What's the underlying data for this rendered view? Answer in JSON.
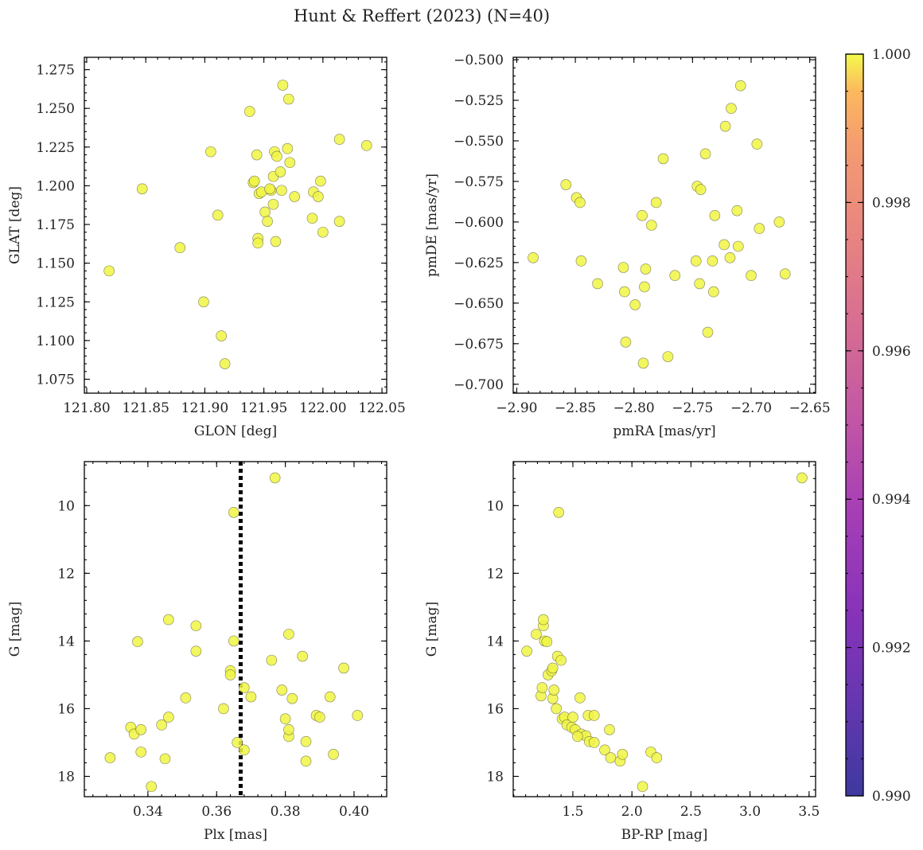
{
  "figure": {
    "title": "Hunt & Reffert (2023) (N=40)"
  },
  "point_color": "#f0f544",
  "chart_data": [
    {
      "id": "glon-glat",
      "type": "scatter",
      "xlabel": "GLON [deg]",
      "ylabel": "GLAT [deg]",
      "xlim": [
        121.798,
        122.054
      ],
      "ylim": [
        1.066,
        1.283
      ],
      "yinvert": false,
      "xticks": [
        121.8,
        121.85,
        121.9,
        121.95,
        122.0,
        122.05
      ],
      "xtick_labels": [
        "121.80",
        "121.85",
        "121.90",
        "121.95",
        "122.00",
        "122.05"
      ],
      "yticks": [
        1.075,
        1.1,
        1.125,
        1.15,
        1.175,
        1.2,
        1.225,
        1.25,
        1.275
      ],
      "ytick_labels": [
        "1.075",
        "1.100",
        "1.125",
        "1.150",
        "1.175",
        "1.200",
        "1.225",
        "1.250",
        "1.275"
      ],
      "points": [
        [
          121.819,
          1.145
        ],
        [
          121.847,
          1.198
        ],
        [
          121.879,
          1.16
        ],
        [
          121.899,
          1.125
        ],
        [
          121.905,
          1.222
        ],
        [
          121.911,
          1.181
        ],
        [
          121.914,
          1.103
        ],
        [
          121.917,
          1.085
        ],
        [
          121.938,
          1.248
        ],
        [
          121.941,
          1.202
        ],
        [
          121.942,
          1.203
        ],
        [
          121.944,
          1.22
        ],
        [
          121.945,
          1.166
        ],
        [
          121.945,
          1.163
        ],
        [
          121.946,
          1.195
        ],
        [
          121.948,
          1.196
        ],
        [
          121.951,
          1.183
        ],
        [
          121.953,
          1.177
        ],
        [
          121.956,
          1.197
        ],
        [
          121.958,
          1.188
        ],
        [
          121.958,
          1.206
        ],
        [
          121.959,
          1.222
        ],
        [
          121.96,
          1.164
        ],
        [
          121.961,
          1.219
        ],
        [
          121.964,
          1.209
        ],
        [
          121.965,
          1.197
        ],
        [
          121.966,
          1.265
        ],
        [
          121.97,
          1.224
        ],
        [
          121.971,
          1.256
        ],
        [
          121.972,
          1.215
        ],
        [
          121.976,
          1.193
        ],
        [
          121.991,
          1.179
        ],
        [
          121.992,
          1.196
        ],
        [
          121.996,
          1.193
        ],
        [
          121.998,
          1.203
        ],
        [
          122.0,
          1.17
        ],
        [
          122.014,
          1.23
        ],
        [
          122.014,
          1.177
        ],
        [
          122.037,
          1.226
        ],
        [
          121.955,
          1.198
        ]
      ]
    },
    {
      "id": "pm",
      "type": "scatter",
      "xlabel": "pmRA [mas/yr]",
      "ylabel": "pmDE [mas/yr]",
      "xlim": [
        -2.903,
        -2.645
      ],
      "ylim": [
        -0.7055,
        -0.4985
      ],
      "yinvert": false,
      "xticks": [
        -2.9,
        -2.85,
        -2.8,
        -2.75,
        -2.7,
        -2.65
      ],
      "xtick_labels": [
        "−2.90",
        "−2.85",
        "−2.80",
        "−2.75",
        "−2.70",
        "−2.65"
      ],
      "yticks": [
        -0.7,
        -0.675,
        -0.65,
        -0.625,
        -0.6,
        -0.575,
        -0.55,
        -0.525,
        -0.5
      ],
      "ytick_labels": [
        "−0.700",
        "−0.675",
        "−0.650",
        "−0.625",
        "−0.600",
        "−0.575",
        "−0.550",
        "−0.525",
        "−0.500"
      ],
      "points": [
        [
          -2.886,
          -0.622
        ],
        [
          -2.858,
          -0.577
        ],
        [
          -2.849,
          -0.585
        ],
        [
          -2.846,
          -0.588
        ],
        [
          -2.845,
          -0.624
        ],
        [
          -2.831,
          -0.638
        ],
        [
          -2.809,
          -0.628
        ],
        [
          -2.808,
          -0.643
        ],
        [
          -2.807,
          -0.674
        ],
        [
          -2.793,
          -0.596
        ],
        [
          -2.792,
          -0.687
        ],
        [
          -2.791,
          -0.64
        ],
        [
          -2.79,
          -0.629
        ],
        [
          -2.785,
          -0.602
        ],
        [
          -2.781,
          -0.588
        ],
        [
          -2.799,
          -0.651
        ],
        [
          -2.775,
          -0.561
        ],
        [
          -2.771,
          -0.683
        ],
        [
          -2.765,
          -0.633
        ],
        [
          -2.747,
          -0.624
        ],
        [
          -2.746,
          -0.578
        ],
        [
          -2.744,
          -0.638
        ],
        [
          -2.743,
          -0.58
        ],
        [
          -2.739,
          -0.558
        ],
        [
          -2.737,
          -0.668
        ],
        [
          -2.733,
          -0.624
        ],
        [
          -2.732,
          -0.643
        ],
        [
          -2.731,
          -0.596
        ],
        [
          -2.723,
          -0.614
        ],
        [
          -2.722,
          -0.541
        ],
        [
          -2.718,
          -0.622
        ],
        [
          -2.717,
          -0.53
        ],
        [
          -2.712,
          -0.593
        ],
        [
          -2.711,
          -0.615
        ],
        [
          -2.709,
          -0.516
        ],
        [
          -2.7,
          -0.633
        ],
        [
          -2.695,
          -0.552
        ],
        [
          -2.693,
          -0.604
        ],
        [
          -2.676,
          -0.6
        ],
        [
          -2.671,
          -0.632
        ]
      ]
    },
    {
      "id": "plx-g",
      "type": "scatter",
      "xlabel": "Plx [mas]",
      "ylabel": "G [mag]",
      "xlim": [
        0.3215,
        0.4095
      ],
      "ylim": [
        8.7,
        18.6
      ],
      "yinvert": true,
      "reference_line_x": 0.367,
      "xticks": [
        0.34,
        0.36,
        0.38,
        0.4
      ],
      "xtick_labels": [
        "0.34",
        "0.36",
        "0.38",
        "0.40"
      ],
      "yticks": [
        10,
        12,
        14,
        16,
        18
      ],
      "ytick_labels": [
        "10",
        "12",
        "14",
        "16",
        "18"
      ],
      "points": [
        [
          0.329,
          17.45
        ],
        [
          0.335,
          16.55
        ],
        [
          0.336,
          16.75
        ],
        [
          0.337,
          14.02
        ],
        [
          0.338,
          16.62
        ],
        [
          0.338,
          17.28
        ],
        [
          0.341,
          18.3
        ],
        [
          0.344,
          16.48
        ],
        [
          0.345,
          17.48
        ],
        [
          0.346,
          16.25
        ],
        [
          0.346,
          13.37
        ],
        [
          0.351,
          15.68
        ],
        [
          0.354,
          13.55
        ],
        [
          0.354,
          14.3
        ],
        [
          0.362,
          16.0
        ],
        [
          0.364,
          14.88
        ],
        [
          0.364,
          15.0
        ],
        [
          0.365,
          14.0
        ],
        [
          0.365,
          10.2
        ],
        [
          0.366,
          17.0
        ],
        [
          0.368,
          17.22
        ],
        [
          0.368,
          15.38
        ],
        [
          0.37,
          15.65
        ],
        [
          0.376,
          14.57
        ],
        [
          0.377,
          9.18
        ],
        [
          0.379,
          15.45
        ],
        [
          0.38,
          16.3
        ],
        [
          0.381,
          13.8
        ],
        [
          0.381,
          16.82
        ],
        [
          0.381,
          16.62
        ],
        [
          0.382,
          15.7
        ],
        [
          0.385,
          14.45
        ],
        [
          0.386,
          16.97
        ],
        [
          0.386,
          17.55
        ],
        [
          0.389,
          16.2
        ],
        [
          0.39,
          16.25
        ],
        [
          0.393,
          15.65
        ],
        [
          0.394,
          17.35
        ],
        [
          0.397,
          14.8
        ],
        [
          0.401,
          16.2
        ]
      ]
    },
    {
      "id": "cmd",
      "type": "scatter",
      "xlabel": "BP-RP [mag]",
      "ylabel": "G [mag]",
      "xlim": [
        0.995,
        3.555
      ],
      "ylim": [
        8.7,
        18.6
      ],
      "yinvert": true,
      "xticks": [
        1.5,
        2.0,
        2.5,
        3.0,
        3.5
      ],
      "xtick_labels": [
        "1.5",
        "2.0",
        "2.5",
        "3.0",
        "3.5"
      ],
      "yticks": [
        10,
        12,
        14,
        16,
        18
      ],
      "ytick_labels": [
        "10",
        "12",
        "14",
        "16",
        "18"
      ],
      "points": [
        [
          1.11,
          14.3
        ],
        [
          1.19,
          13.8
        ],
        [
          1.23,
          15.62
        ],
        [
          1.24,
          15.38
        ],
        [
          1.25,
          13.55
        ],
        [
          1.25,
          13.37
        ],
        [
          1.26,
          14.0
        ],
        [
          1.28,
          14.02
        ],
        [
          1.29,
          15.0
        ],
        [
          1.32,
          14.88
        ],
        [
          1.33,
          15.7
        ],
        [
          1.33,
          14.8
        ],
        [
          1.34,
          15.45
        ],
        [
          1.36,
          16.0
        ],
        [
          1.37,
          14.45
        ],
        [
          1.38,
          10.2
        ],
        [
          1.4,
          14.57
        ],
        [
          1.41,
          16.3
        ],
        [
          1.43,
          16.25
        ],
        [
          1.45,
          16.48
        ],
        [
          1.49,
          16.55
        ],
        [
          1.5,
          16.25
        ],
        [
          1.52,
          16.62
        ],
        [
          1.56,
          15.68
        ],
        [
          1.57,
          16.75
        ],
        [
          1.61,
          16.8
        ],
        [
          1.63,
          16.2
        ],
        [
          1.64,
          16.97
        ],
        [
          1.68,
          16.2
        ],
        [
          1.68,
          17.0
        ],
        [
          1.77,
          17.22
        ],
        [
          1.81,
          16.62
        ],
        [
          1.82,
          17.45
        ],
        [
          1.9,
          17.55
        ],
        [
          1.92,
          17.35
        ],
        [
          2.09,
          18.3
        ],
        [
          2.16,
          17.28
        ],
        [
          2.21,
          17.45
        ],
        [
          3.44,
          9.18
        ],
        [
          1.54,
          16.82
        ]
      ]
    }
  ],
  "colorbar": {
    "range": [
      0.99,
      1.0
    ],
    "ticks": [
      0.99,
      0.992,
      0.994,
      0.996,
      0.998,
      1.0
    ],
    "tick_labels": [
      "0.990",
      "0.992",
      "0.994",
      "0.996",
      "0.998",
      "1.000"
    ],
    "colormap": "plasma"
  }
}
